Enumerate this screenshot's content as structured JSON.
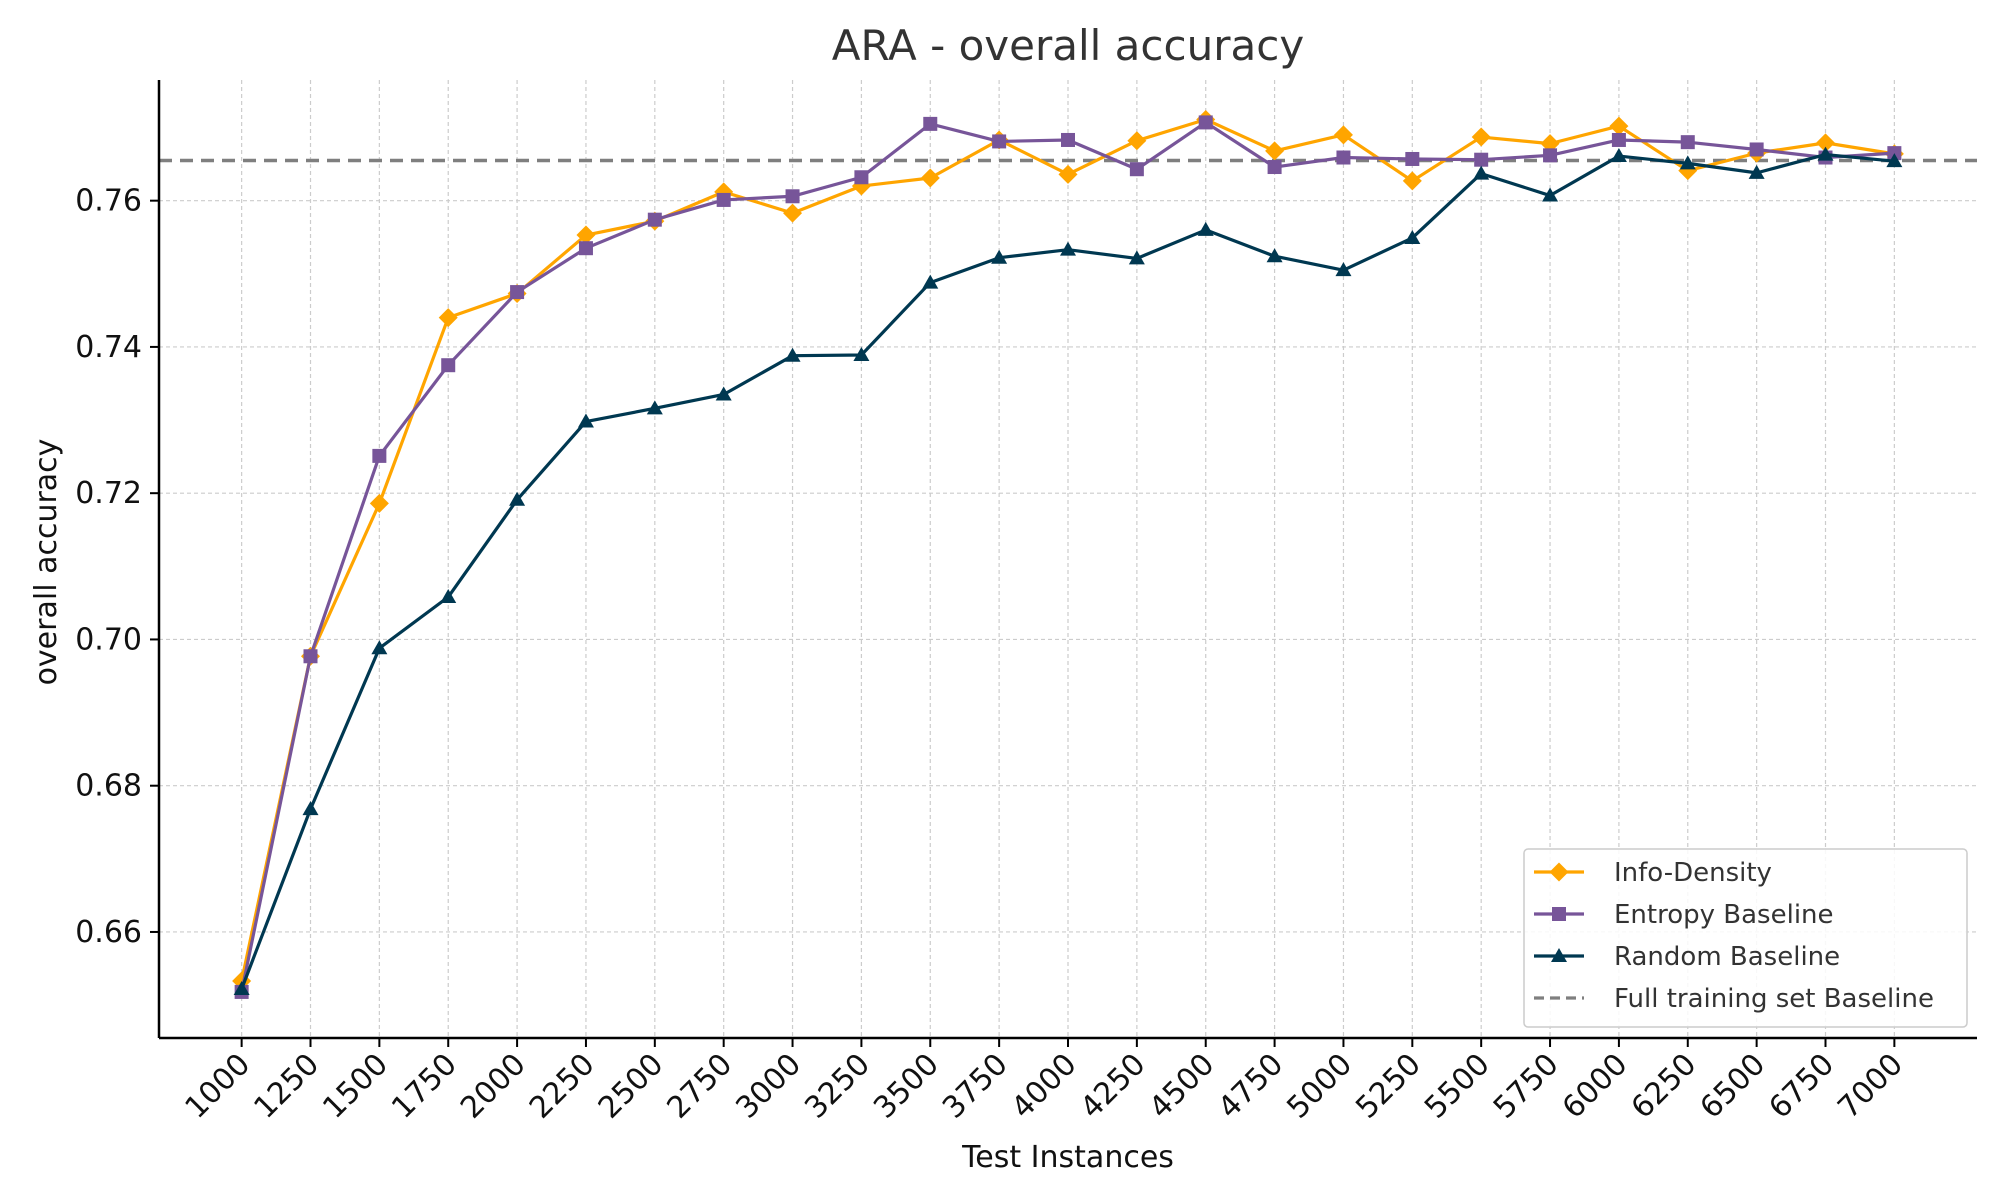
{
  "chart_data": {
    "type": "line",
    "title": "ARA - overall accuracy",
    "xlabel": "Test Instances",
    "ylabel": "overall accuracy",
    "x": [
      1000,
      1250,
      1500,
      1750,
      2000,
      2250,
      2500,
      2750,
      3000,
      3250,
      3500,
      3750,
      4000,
      4250,
      4500,
      4750,
      5000,
      5250,
      5500,
      5750,
      6000,
      6250,
      6500,
      6750,
      7000
    ],
    "xticks": [
      "1000",
      "1250",
      "1500",
      "1750",
      "2000",
      "2250",
      "2500",
      "2750",
      "3000",
      "3250",
      "3500",
      "3750",
      "4000",
      "4250",
      "4500",
      "4750",
      "5000",
      "5250",
      "5500",
      "5750",
      "6000",
      "6250",
      "6500",
      "6750",
      "7000"
    ],
    "yticks": [
      "0.66",
      "0.68",
      "0.70",
      "0.72",
      "0.74",
      "0.76"
    ],
    "ylim": [
      0.6455,
      0.7765
    ],
    "xlim": [
      700,
      7300
    ],
    "grid": true,
    "legend_position": "lower-right",
    "series": [
      {
        "name": "Info-Density",
        "color": "#ffa500",
        "marker": "diamond",
        "values": [
          0.6533,
          0.6977,
          0.7186,
          0.744,
          0.7473,
          0.7553,
          0.7572,
          0.7612,
          0.7583,
          0.762,
          0.7631,
          0.7683,
          0.7636,
          0.7682,
          0.7711,
          0.7668,
          0.769,
          0.7627,
          0.7687,
          0.7678,
          0.7702,
          0.7641,
          0.7665,
          0.7679,
          0.7664
        ]
      },
      {
        "name": "Entropy Baseline",
        "color": "#775599",
        "marker": "square",
        "values": [
          0.6518,
          0.6977,
          0.7251,
          0.7375,
          0.7475,
          0.7535,
          0.7574,
          0.7601,
          0.7606,
          0.7632,
          0.7705,
          0.7681,
          0.7683,
          0.7643,
          0.7707,
          0.7646,
          0.7659,
          0.7657,
          0.7656,
          0.7662,
          0.7683,
          0.768,
          0.767,
          0.7659,
          0.7665
        ]
      },
      {
        "name": "Random Baseline",
        "color": "#003851",
        "marker": "triangle",
        "values": [
          0.6522,
          0.6768,
          0.6988,
          0.7058,
          0.7191,
          0.7298,
          0.7316,
          0.7335,
          0.7388,
          0.7389,
          0.7488,
          0.7522,
          0.7533,
          0.7521,
          0.756,
          0.7524,
          0.7505,
          0.7549,
          0.7637,
          0.7607,
          0.7661,
          0.7651,
          0.7638,
          0.7663,
          0.7654
        ]
      }
    ],
    "reference_line": {
      "name": "Full training set Baseline",
      "color": "#7f7f7f",
      "style": "dashed",
      "value": 0.7655
    }
  }
}
